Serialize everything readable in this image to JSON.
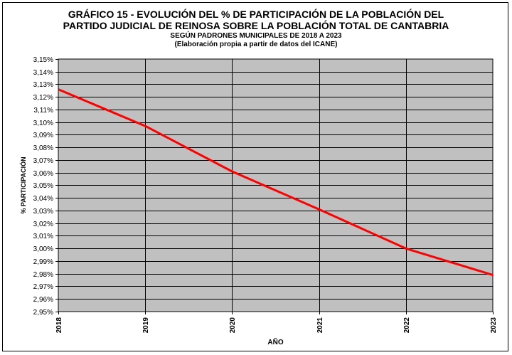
{
  "chart_data": {
    "type": "line",
    "title_line1": "GRÁFICO 15 - EVOLUCIÓN DEL % DE PARTICIPACIÓN DE LA POBLACIÓN DEL",
    "title_line2": "PARTIDO JUDICIAL DE REINOSA SOBRE LA POBLACIÓN TOTAL DE CANTABRIA",
    "subtitle_line1": "SEGÚN PADRONES MUNICIPALES DE 2018 A 2023",
    "subtitle_line2": "(Elaboración propia a partir de datos del ICANE)",
    "xlabel": "AÑO",
    "ylabel": "% PARTICIPACIÓN",
    "x": [
      "2018",
      "2019",
      "2020",
      "2021",
      "2022",
      "2023"
    ],
    "series": [
      {
        "values": [
          3.126,
          3.097,
          3.061,
          3.031,
          3.0,
          2.979
        ]
      }
    ],
    "ylim": [
      2.95,
      3.15
    ],
    "ystep": 0.01,
    "ytick_labels": [
      "2,95%",
      "2,96%",
      "2,97%",
      "2,98%",
      "2,99%",
      "3,00%",
      "3,01%",
      "3,02%",
      "3,03%",
      "3,04%",
      "3,05%",
      "3,06%",
      "3,07%",
      "3,08%",
      "3,09%",
      "3,10%",
      "3,11%",
      "3,12%",
      "3,13%",
      "3,14%",
      "3,15%"
    ],
    "grid": true,
    "colors": {
      "plot_background": "#c0c0c0",
      "line": "#ff0000",
      "grid": "#000000"
    }
  }
}
